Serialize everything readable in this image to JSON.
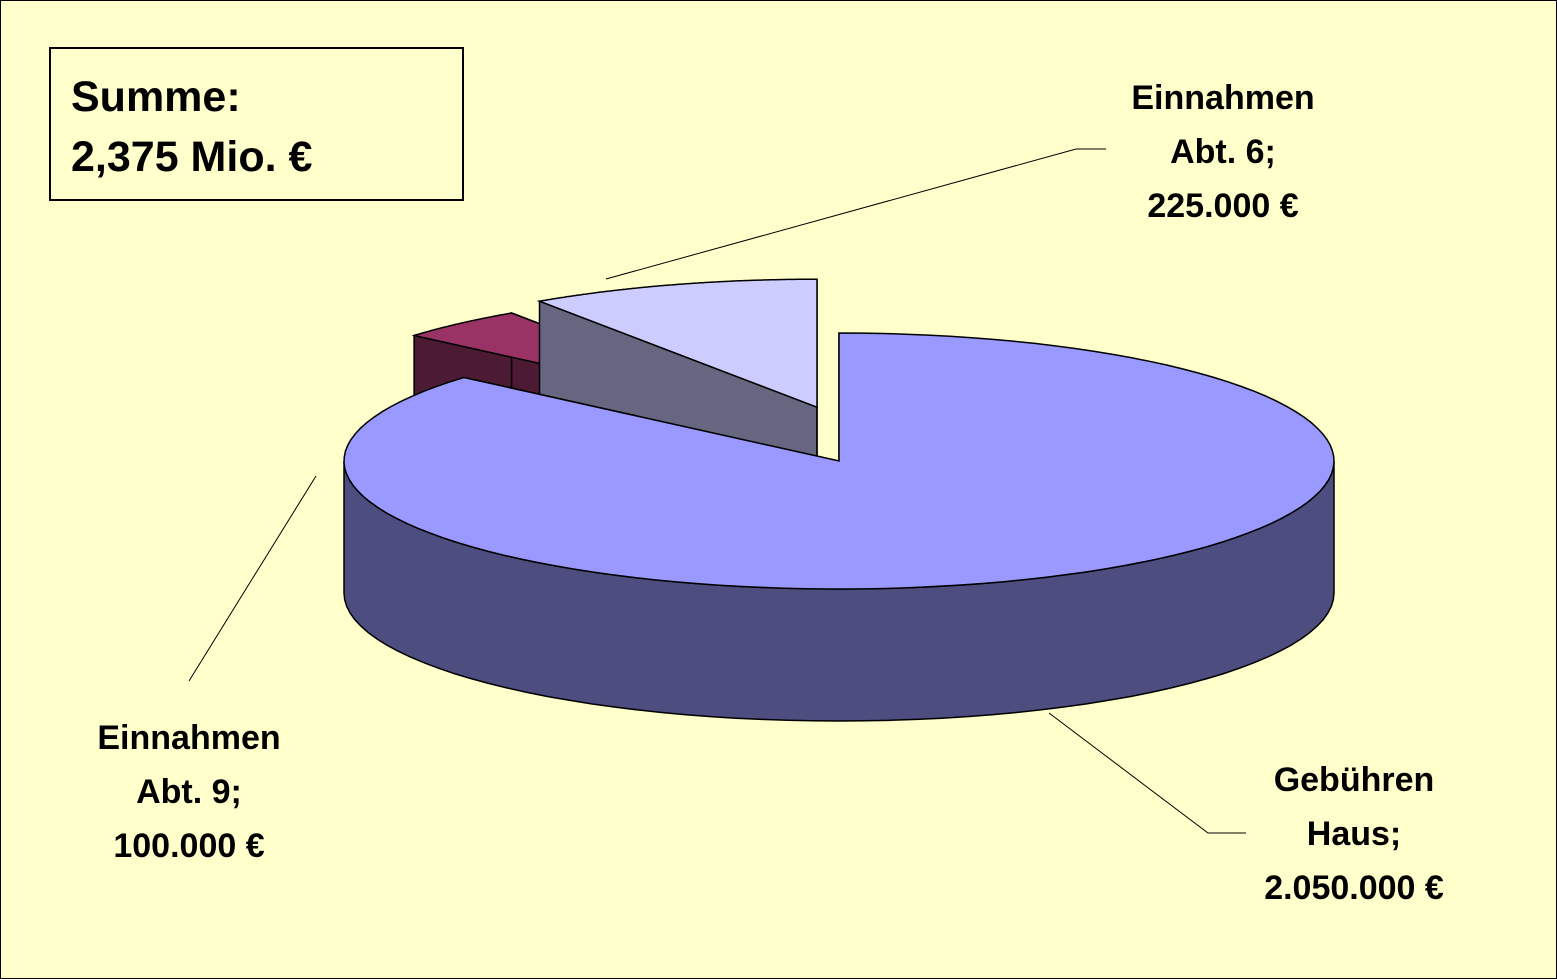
{
  "chart_data": {
    "type": "pie3d",
    "categories": [
      "Gebühren Haus;",
      "Einnahmen Abt. 9;",
      "Einnahmen Abt. 6;"
    ],
    "values": [
      2050000,
      100000,
      225000
    ],
    "value_labels": [
      "2.050.000 €",
      "100.000 €",
      "225.000 €"
    ],
    "colors": [
      "#9999ff",
      "#993366",
      "#ccccff"
    ],
    "annotation": [
      "Summe:",
      "2,375 Mio. €"
    ]
  }
}
